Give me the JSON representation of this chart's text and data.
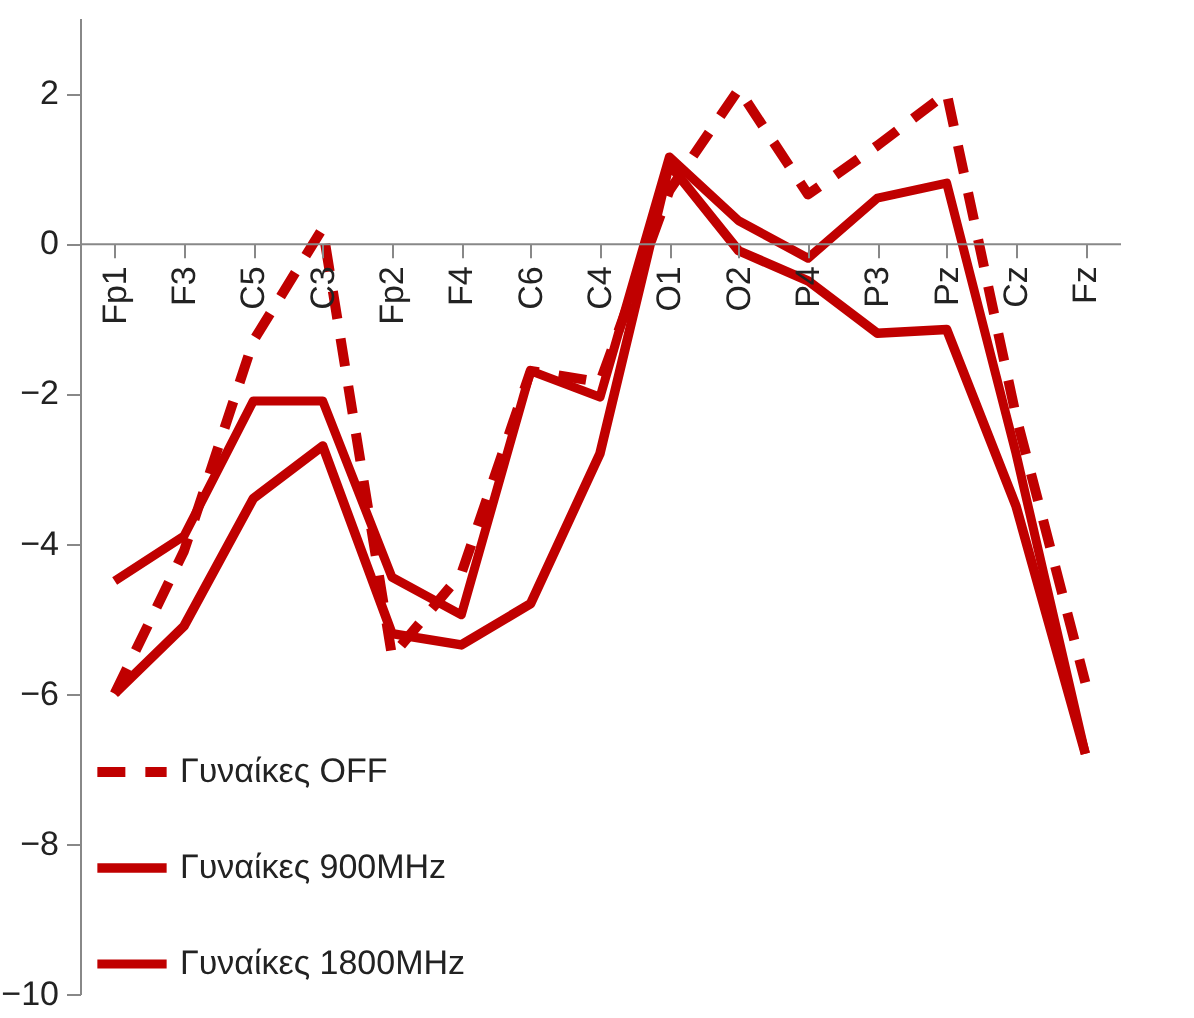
{
  "chart_data": {
    "type": "line",
    "categories": [
      "Fp1",
      "F3",
      "C5",
      "C3",
      "Fp2",
      "F4",
      "C6",
      "C4",
      "O1",
      "O2",
      "P4",
      "P3",
      "Pz",
      "Cz",
      "Fz"
    ],
    "series": [
      {
        "name": "Γυναίκες OFF",
        "color": "#c00000",
        "line_style": "dashed",
        "values": [
          -6.0,
          -4.1,
          -1.3,
          0.2,
          -5.5,
          -4.4,
          -1.7,
          -1.85,
          0.7,
          2.05,
          0.65,
          1.3,
          2.0,
          -2.3,
          -5.85
        ]
      },
      {
        "name": "Γυναίκες 900MHz",
        "color": "#c00000",
        "line_style": "solid",
        "values": [
          -6.0,
          -5.1,
          -3.4,
          -2.7,
          -5.2,
          -5.35,
          -4.8,
          -2.8,
          1.05,
          -0.1,
          -0.5,
          -1.2,
          -1.15,
          -3.5,
          -6.8
        ]
      },
      {
        "name": "Γυναίκες 1800MHz",
        "color": "#c00000",
        "line_style": "solid",
        "values": [
          -4.5,
          -3.9,
          -2.1,
          -2.1,
          -4.45,
          -4.95,
          -1.7,
          -2.05,
          1.15,
          0.3,
          -0.2,
          0.6,
          0.8,
          -2.8,
          -6.8
        ]
      }
    ],
    "ylim": [
      -10,
      3
    ],
    "yticks": [
      -10,
      -8,
      -6,
      -4,
      -2,
      0,
      2
    ],
    "grid": false,
    "legend": "bottom left",
    "marker": "none"
  }
}
